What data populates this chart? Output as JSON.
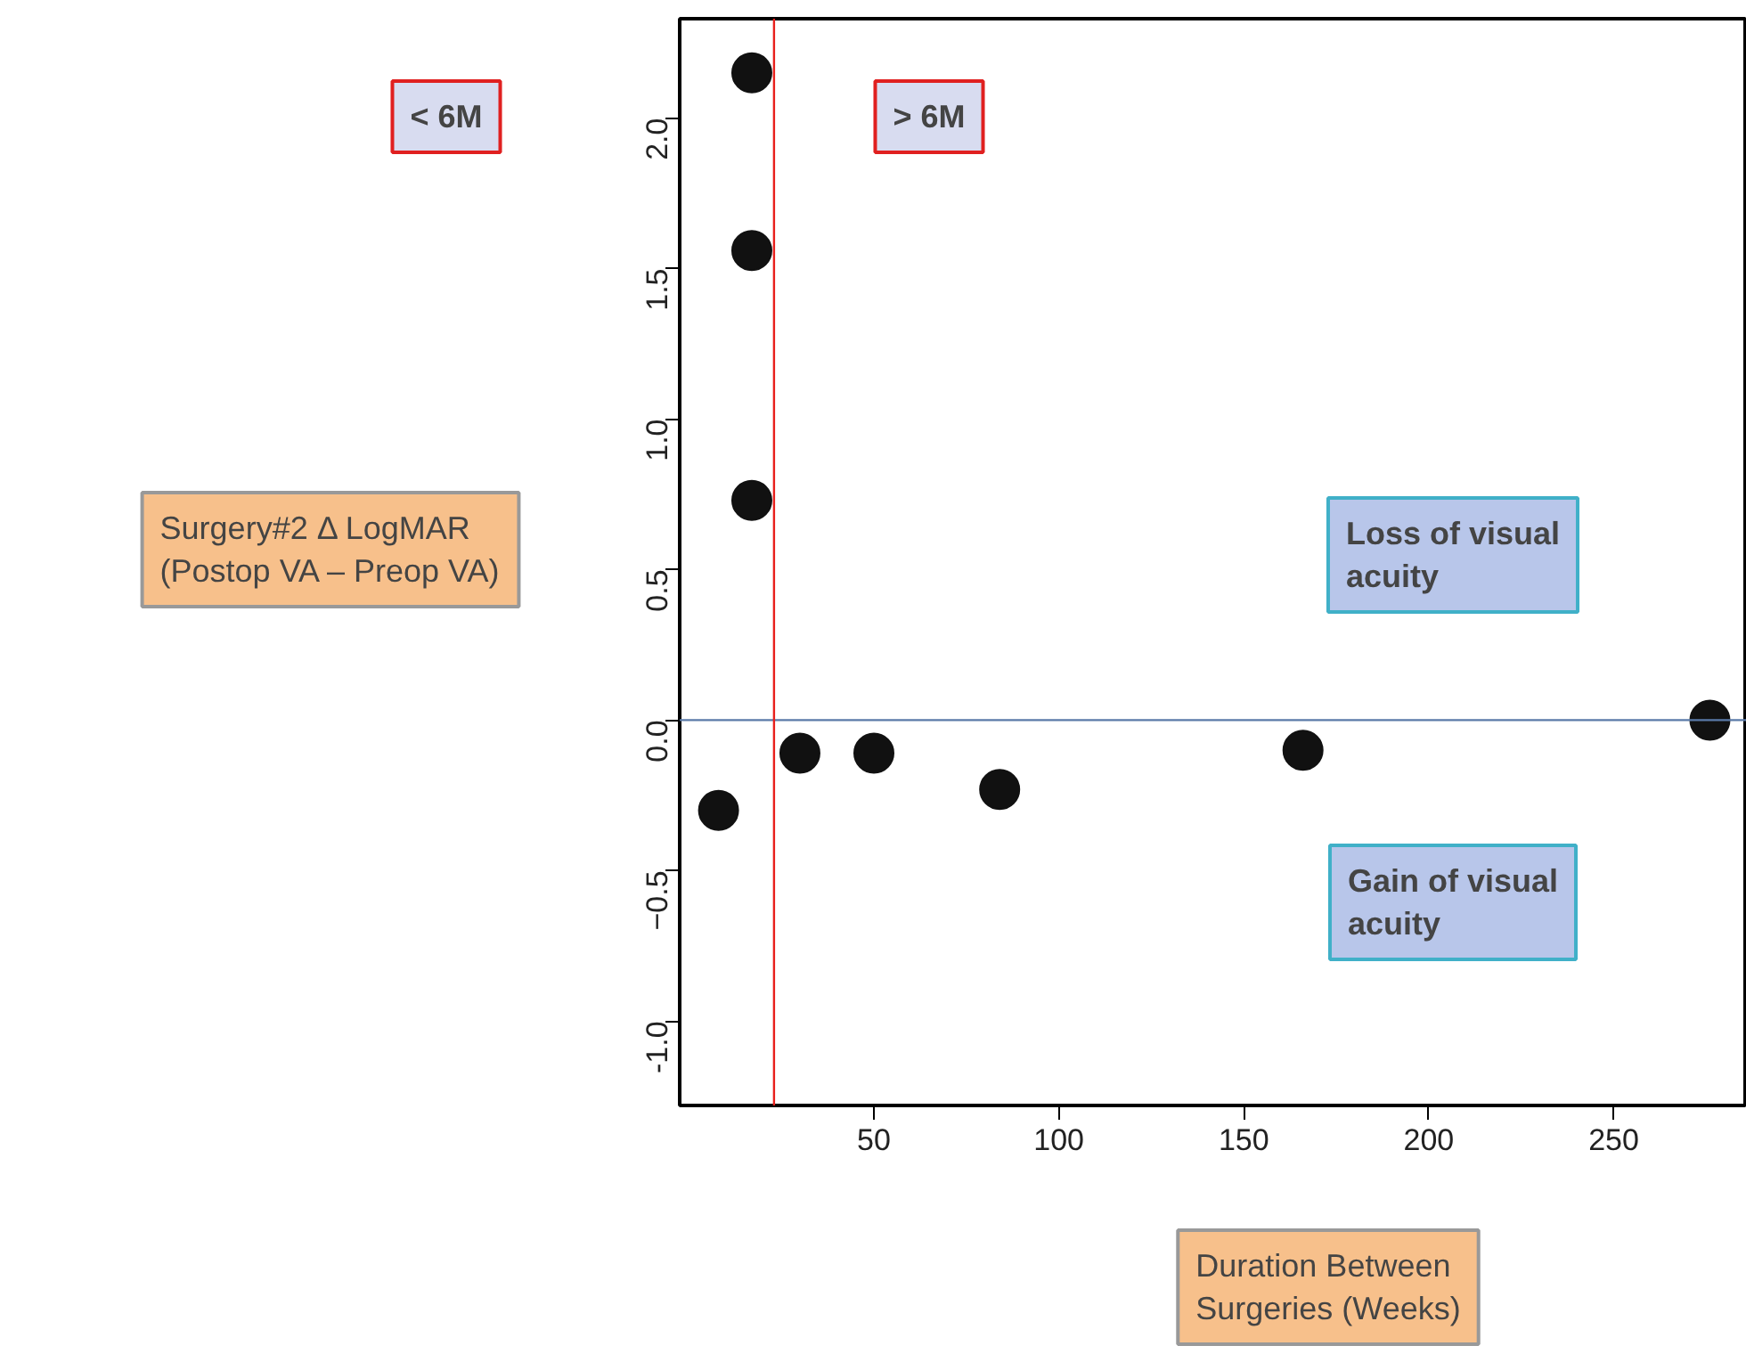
{
  "chart_data": {
    "type": "scatter",
    "xlabel": "Duration Between\nSurgeries (Weeks)",
    "ylabel": "Surgery#2 Δ LogMAR\n(Postop VA – Preop VA)",
    "annotations": [
      "< 6M",
      "> 6M",
      "Loss of visual\nacuity",
      "Gain of visual\nacuity"
    ],
    "x": [
      8,
      17,
      17,
      17,
      30,
      50,
      84,
      166,
      276
    ],
    "series": [
      {
        "color": "#111111",
        "values": [
          -0.3,
          2.15,
          1.56,
          0.73,
          -0.11,
          -0.11,
          -0.23,
          -0.1,
          0.0
        ]
      }
    ],
    "xlim": [
      -2.5,
      286
    ],
    "ylim": [
      -1.28,
      2.33
    ],
    "xticks": [
      50,
      100,
      150,
      200,
      250
    ],
    "yticks": [
      {
        "value": -1,
        "label": "-1.0"
      },
      -0.5,
      {
        "value": 0,
        "label": "0.0"
      },
      0.5,
      {
        "value": 1,
        "label": "1.0"
      },
      1.5,
      {
        "value": 2,
        "label": "2.0"
      }
    ],
    "ref_lines": [
      {
        "axis": "y",
        "value": 0,
        "color": "#5a7aa8"
      },
      {
        "axis": "x",
        "value": 23,
        "color": "#e8201c"
      }
    ],
    "marker": "circle"
  }
}
